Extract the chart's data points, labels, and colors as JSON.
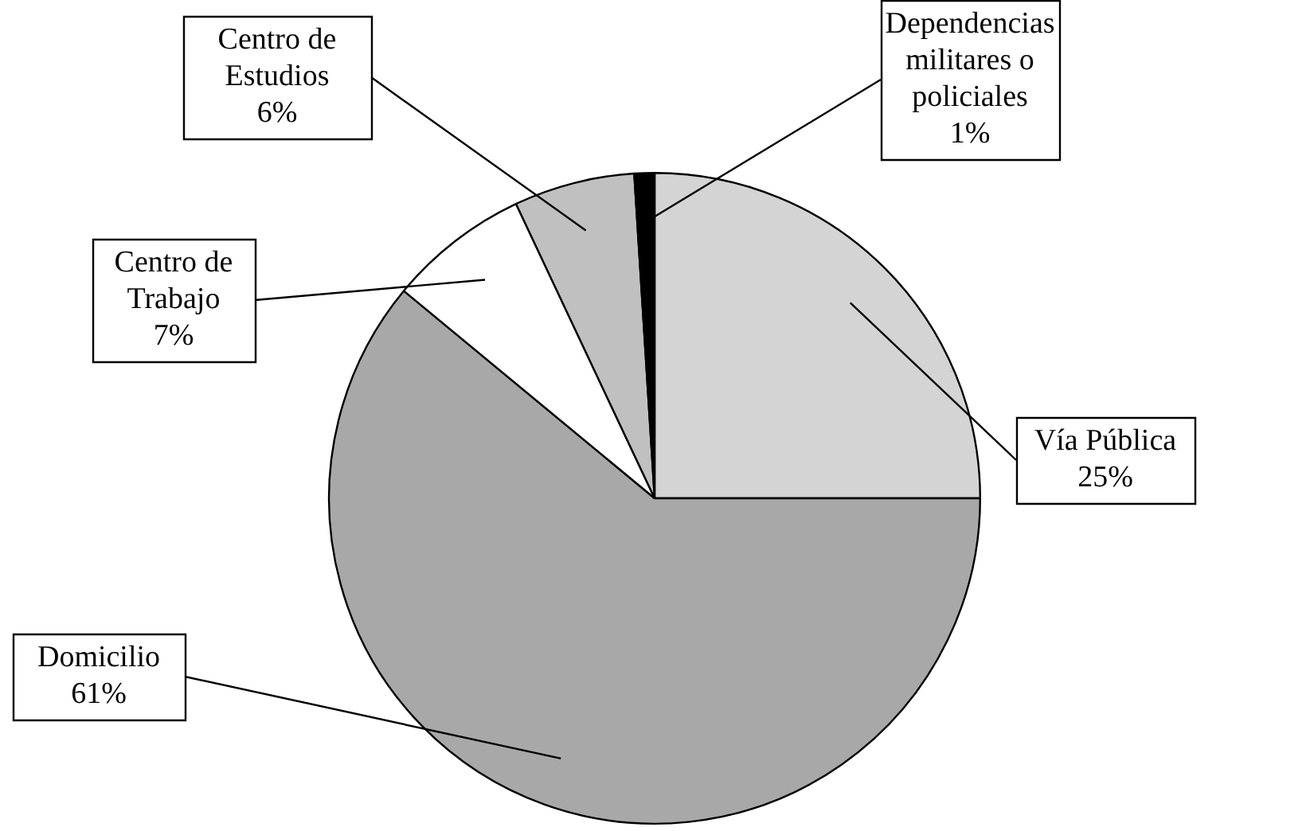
{
  "chart_data": {
    "type": "pie",
    "categories": [
      "Vía Pública",
      "Domicilio",
      "Centro de Trabajo",
      "Centro de Estudios",
      "Dependencias militares o policiales"
    ],
    "values": [
      25,
      61,
      7,
      6,
      1
    ],
    "value_labels": [
      "25%",
      "61%",
      "7%",
      "6%",
      "1%"
    ],
    "colors": [
      "#d4d4d4",
      "#a8a8a8",
      "#ffffff",
      "#c0c0c0",
      "#000000"
    ],
    "legend": false
  }
}
